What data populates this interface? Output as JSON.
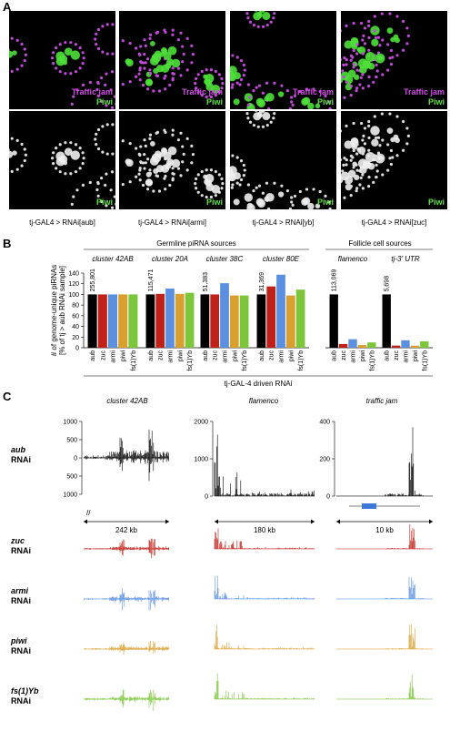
{
  "panel_a": {
    "label": "A",
    "top_labels": [
      "Traffic jam",
      "Piwi"
    ],
    "bottom_label": "Piwi",
    "captions": [
      "tj-GAL4 > RNAi[aub]",
      "tj-GAL4 > RNAi[armi]",
      "tj-GAL4 > RNAi[yb]",
      "tj-GAL4 > RNAi[zuc]"
    ]
  },
  "panel_b": {
    "label": "B",
    "groups": [
      "Germline piRNA sources",
      "Follicle cell sources"
    ],
    "y_label": [
      "# of genome-unique piRNAs",
      "[% of tj > aub RNAi sample]"
    ],
    "x_label": "tj-GAL-4 driven RNAi"
  },
  "chart_data": [
    {
      "type": "bar",
      "title": "cluster 42AB",
      "annotation": "255,801",
      "categories": [
        "aub",
        "zuc",
        "armi",
        "piwi",
        "fs(1)Yb"
      ],
      "values": [
        100,
        100,
        100,
        100,
        100
      ],
      "colors": [
        "#000000",
        "#c0221a",
        "#5b8fe0",
        "#d9a030",
        "#7dc63c"
      ],
      "ylim": [
        0,
        140
      ],
      "yticks": [
        0,
        20,
        40,
        60,
        80,
        100,
        120,
        140
      ]
    },
    {
      "type": "bar",
      "title": "cluster 20A",
      "annotation": "115,471",
      "categories": [
        "aub",
        "zuc",
        "armi",
        "piwi",
        "fs(1)Yb"
      ],
      "values": [
        100,
        101,
        111,
        101,
        103
      ],
      "colors": [
        "#000000",
        "#c0221a",
        "#5b8fe0",
        "#d9a030",
        "#7dc63c"
      ],
      "ylim": [
        0,
        140
      ]
    },
    {
      "type": "bar",
      "title": "cluster 38C",
      "annotation": "51,383",
      "categories": [
        "aub",
        "zuc",
        "armi",
        "piwi",
        "fs(1)Yb"
      ],
      "values": [
        100,
        100,
        121,
        98,
        98
      ],
      "colors": [
        "#000000",
        "#c0221a",
        "#5b8fe0",
        "#d9a030",
        "#7dc63c"
      ],
      "ylim": [
        0,
        140
      ]
    },
    {
      "type": "bar",
      "title": "cluster 80E",
      "annotation": "31,369",
      "categories": [
        "aub",
        "zuc",
        "armi",
        "piwi",
        "fs(1)Yb"
      ],
      "values": [
        100,
        115,
        137,
        98,
        109
      ],
      "colors": [
        "#000000",
        "#c0221a",
        "#5b8fe0",
        "#d9a030",
        "#7dc63c"
      ],
      "ylim": [
        0,
        140
      ]
    },
    {
      "type": "bar",
      "title": "flamenco",
      "annotation": "113,069",
      "categories": [
        "aub",
        "zuc",
        "armi",
        "piwi",
        "fs(1)Yb"
      ],
      "values": [
        100,
        7,
        16,
        5,
        10
      ],
      "colors": [
        "#000000",
        "#c0221a",
        "#5b8fe0",
        "#d9a030",
        "#7dc63c"
      ],
      "ylim": [
        0,
        140
      ]
    },
    {
      "type": "bar",
      "title": "tj-3' UTR",
      "annotation": "5,698",
      "categories": [
        "aub",
        "zuc",
        "armi",
        "piwi",
        "fs(1)Yb"
      ],
      "values": [
        100,
        4,
        14,
        4,
        12
      ],
      "colors": [
        "#000000",
        "#c0221a",
        "#5b8fe0",
        "#d9a030",
        "#7dc63c"
      ],
      "ylim": [
        0,
        140
      ]
    }
  ],
  "panel_c": {
    "label": "C",
    "suffix": "RNAi",
    "regions": [
      {
        "title": "cluster 42AB",
        "scale": "242 kb",
        "yticks": [
          1000,
          500,
          0,
          500,
          1000
        ]
      },
      {
        "title": "flamenco",
        "scale": "180 kb",
        "yticks": [
          2000,
          1000,
          0
        ]
      },
      {
        "title": "traffic jam",
        "scale": "10 kb",
        "yticks": [
          400,
          200,
          0
        ]
      }
    ],
    "rows": [
      {
        "gene": "aub",
        "color": "#000000"
      },
      {
        "gene": "zuc",
        "color": "#c0221a"
      },
      {
        "gene": "armi",
        "color": "#5b8fe0"
      },
      {
        "gene": "piwi",
        "color": "#d9a030"
      },
      {
        "gene": "fs(1)Yb",
        "color": "#7dc63c"
      }
    ]
  }
}
